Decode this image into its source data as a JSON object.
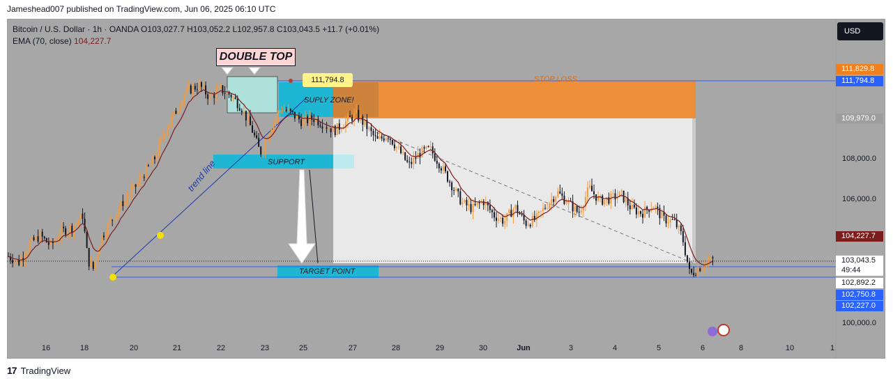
{
  "header": {
    "publisher": "Jameshead007 published on TradingView.com, Jun 06, 2025 06:10 UTC"
  },
  "legend": {
    "symbol_line": "Bitcoin / U.S. Dollar · 1h · OANDA  O103,027.7  H103,052.2  L102,957.8  C103,043.5  +11.7 (+0.01%)",
    "ema_label": "EMA (70, close)",
    "ema_value": "104,227.7"
  },
  "currency_button": "USD",
  "footer": {
    "brand": "TradingView",
    "logo": "17"
  },
  "price_labels": [
    {
      "text": "111,829.8",
      "bg": "#f0801e",
      "fg": "#ffffff"
    },
    {
      "text": "111,794.8",
      "bg": "#2962ff",
      "fg": "#ffffff"
    },
    {
      "text": "109,979.0",
      "bg": "#9e9e9e",
      "fg": "#ffffff"
    },
    {
      "text": "104,227.7",
      "bg": "#7c1d1d",
      "fg": "#ffffff"
    },
    {
      "text": "103,043.5",
      "bg": "#ffffff",
      "fg": "#131722"
    },
    {
      "text": "49:44",
      "bg": "#ffffff",
      "fg": "#131722"
    },
    {
      "text": "102,892.2",
      "bg": "#ffffff",
      "fg": "#131722"
    },
    {
      "text": "102,750.8",
      "bg": "#2962ff",
      "fg": "#ffffff"
    },
    {
      "text": "102,227.0",
      "bg": "#2962ff",
      "fg": "#ffffff"
    }
  ],
  "annotations": {
    "double_top": "DOUBLE TOP",
    "price_tag": "111,794.8",
    "supply_zone": "SUPLY ZONE!",
    "support": "SUPPORT",
    "target": "TARGET POINT",
    "stop_loss": "STOP LOSS",
    "trend_line": "trend line"
  },
  "colors": {
    "background": "#a7a7a7",
    "bull_candle": "#f39a3c",
    "bear_candle": "#131722",
    "ema": "#7c1d1d",
    "cyan_zone": "#1fb6d4",
    "stop_zone": "#ee8a2f",
    "blue_line": "#2962ff"
  },
  "chart_data": {
    "type": "candlestick",
    "title": "",
    "xlabel": "",
    "ylabel": "",
    "y_axis_ticks": [
      "108,000.0",
      "106,000.0",
      "100,000.0"
    ],
    "x_axis_ticks": [
      "16",
      "18",
      "20",
      "21",
      "22",
      "23",
      "25",
      "27",
      "28",
      "29",
      "30",
      "Jun",
      "3",
      "4",
      "5",
      "6",
      "8",
      "10",
      "1"
    ],
    "price_path": [
      [
        0,
        103200
      ],
      [
        8,
        102900
      ],
      [
        16,
        103800
      ],
      [
        24,
        104200
      ],
      [
        32,
        103700
      ],
      [
        40,
        104400
      ],
      [
        48,
        104600
      ],
      [
        56,
        105200
      ],
      [
        60,
        103000
      ],
      [
        64,
        102600
      ],
      [
        70,
        104100
      ],
      [
        78,
        105000
      ],
      [
        86,
        105800
      ],
      [
        94,
        106400
      ],
      [
        102,
        107200
      ],
      [
        110,
        107900
      ],
      [
        118,
        109300
      ],
      [
        126,
        110200
      ],
      [
        134,
        111200
      ],
      [
        144,
        111500
      ],
      [
        152,
        110900
      ],
      [
        160,
        111300
      ],
      [
        168,
        111000
      ],
      [
        176,
        110400
      ],
      [
        184,
        109300
      ],
      [
        190,
        108200
      ],
      [
        198,
        109500
      ],
      [
        206,
        110400
      ],
      [
        214,
        110100
      ],
      [
        222,
        109700
      ],
      [
        230,
        109900
      ],
      [
        238,
        109600
      ],
      [
        246,
        109300
      ],
      [
        254,
        109700
      ],
      [
        262,
        110100
      ],
      [
        270,
        109500
      ],
      [
        278,
        108800
      ],
      [
        286,
        109100
      ],
      [
        294,
        108400
      ],
      [
        302,
        107600
      ],
      [
        310,
        108200
      ],
      [
        318,
        108400
      ],
      [
        326,
        107600
      ],
      [
        334,
        106700
      ],
      [
        342,
        105800
      ],
      [
        350,
        105500
      ],
      [
        358,
        105900
      ],
      [
        366,
        105200
      ],
      [
        374,
        104900
      ],
      [
        382,
        105600
      ],
      [
        390,
        104800
      ],
      [
        398,
        105000
      ],
      [
        406,
        105700
      ],
      [
        414,
        106300
      ],
      [
        422,
        105800
      ],
      [
        430,
        105300
      ],
      [
        438,
        106500
      ],
      [
        446,
        105900
      ],
      [
        454,
        106000
      ],
      [
        462,
        106200
      ],
      [
        470,
        105500
      ],
      [
        478,
        105300
      ],
      [
        486,
        105700
      ],
      [
        494,
        105000
      ],
      [
        502,
        104900
      ],
      [
        508,
        104200
      ],
      [
        514,
        102300
      ],
      [
        520,
        102600
      ],
      [
        526,
        102900
      ],
      [
        532,
        103043.5
      ]
    ],
    "ema_label": "EMA (70, close)",
    "ema_last": 104227.7,
    "last_price": 103043.5,
    "levels": {
      "stop_loss_top": 111829.8,
      "entry_line": 111794.8,
      "stop_zone_bottom": 109979.0,
      "target_line_1": 102750.8,
      "target_line_2": 102227.0
    }
  }
}
